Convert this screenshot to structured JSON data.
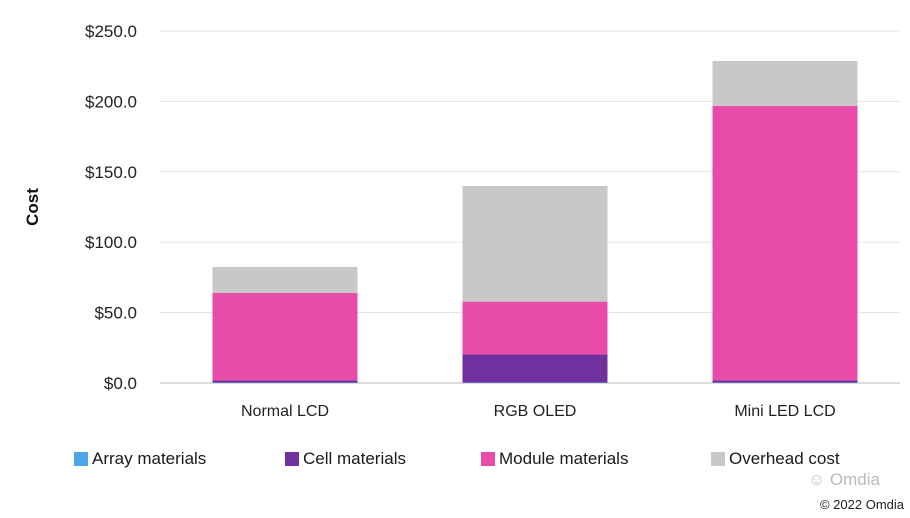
{
  "chart_data": {
    "type": "bar",
    "stacked": true,
    "title": "",
    "xlabel": "",
    "ylabel": "Cost",
    "ylim": [
      0,
      250
    ],
    "yticks": [
      "$0.0",
      "$50.0",
      "$100.0",
      "$150.0",
      "$200.0",
      "$250.0"
    ],
    "ytick_values": [
      0,
      50,
      100,
      150,
      200,
      250
    ],
    "grid": true,
    "legend_position": "bottom",
    "categories": [
      "Normal LCD",
      "RGB OLED",
      "Mini LED LCD"
    ],
    "series": [
      {
        "name": "Array materials",
        "color": "#4DA6E8",
        "values": [
          0.3,
          0.3,
          0.3
        ]
      },
      {
        "name": "Cell materials",
        "color": "#7030A0",
        "values": [
          1.5,
          19.9,
          1.5
        ]
      },
      {
        "name": "Module materials",
        "color": "#E84BAA",
        "values": [
          62.1,
          37.6,
          194.9
        ]
      },
      {
        "name": "Overhead cost",
        "color": "#C8C8C8",
        "values": [
          18.5,
          82.1,
          32.0
        ]
      }
    ]
  },
  "watermark": "Omdia",
  "copyright": "© 2022 Omdia"
}
